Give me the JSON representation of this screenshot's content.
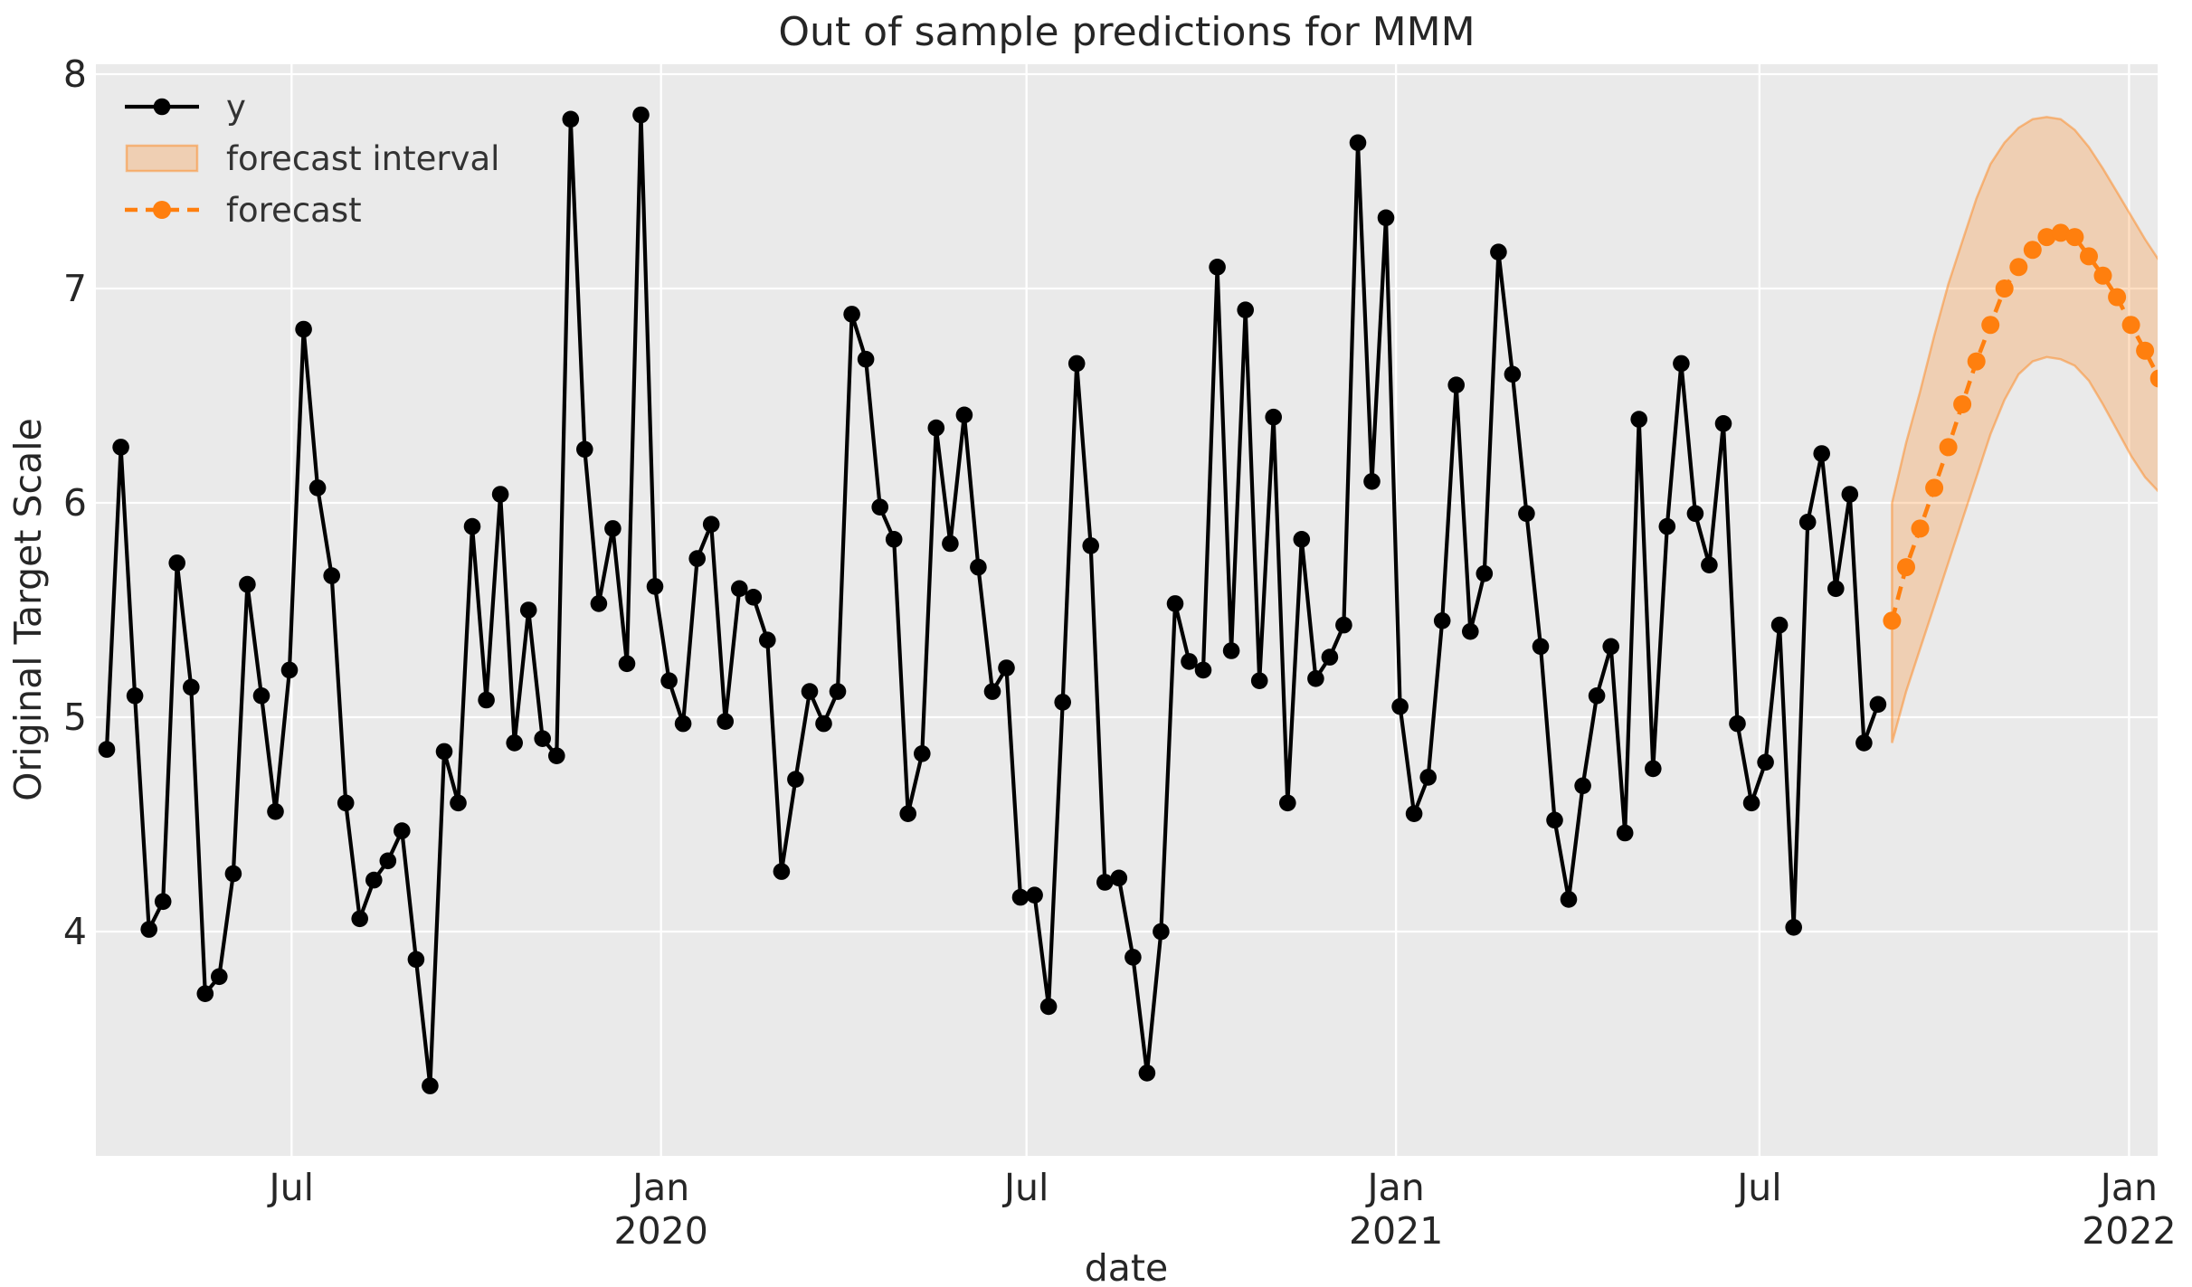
{
  "title": "Out of sample predictions for MMM",
  "x_axis": {
    "label": "date",
    "ticks": [
      {
        "month": "Jul",
        "year": "",
        "date": "2019-07-01"
      },
      {
        "month": "Jan",
        "year": "2020",
        "date": "2020-01-01"
      },
      {
        "month": "Jul",
        "year": "",
        "date": "2020-07-01"
      },
      {
        "month": "Jan",
        "year": "2021",
        "date": "2021-01-01"
      },
      {
        "month": "Jul",
        "year": "",
        "date": "2021-07-01"
      },
      {
        "month": "Jan",
        "year": "2022",
        "date": "2022-01-01"
      }
    ]
  },
  "y_axis": {
    "label": "Original Target Scale",
    "ticks": [
      8,
      7,
      6,
      5,
      4
    ]
  },
  "legend": {
    "items": [
      {
        "label": "y"
      },
      {
        "label": "forecast interval"
      },
      {
        "label": "forecast"
      }
    ]
  },
  "colors": {
    "series": "#000000",
    "forecast": "#ff7f0e",
    "band_fill": "rgba(255,127,14,0.25)",
    "band_edge": "rgba(255,127,14,0.45)",
    "plot_bg": "#eaeaea",
    "grid": "#ffffff",
    "text": "#262626"
  },
  "chart_data": {
    "type": "line",
    "title": "Out of sample predictions for MMM",
    "xlabel": "date",
    "ylabel": "Original Target Scale",
    "ylim": [
      2.95,
      8.05
    ],
    "xlim": [
      "2019-03-26",
      "2022-01-15"
    ],
    "grid": true,
    "legend_position": "upper left",
    "series": [
      {
        "name": "y",
        "style": "solid-marker",
        "color": "#000000",
        "start_date": "2019-03-31",
        "freq_days": 7,
        "values": [
          4.85,
          6.26,
          5.1,
          4.01,
          4.14,
          5.72,
          5.14,
          3.71,
          3.79,
          4.27,
          5.62,
          5.1,
          4.56,
          5.22,
          6.81,
          6.07,
          5.66,
          4.6,
          4.06,
          4.24,
          4.33,
          4.47,
          3.87,
          3.28,
          4.84,
          4.6,
          5.89,
          5.08,
          6.04,
          4.88,
          5.5,
          4.9,
          4.82,
          7.79,
          6.25,
          5.53,
          5.88,
          5.25,
          7.81,
          5.61,
          5.17,
          4.97,
          5.74,
          5.9,
          4.98,
          5.6,
          5.56,
          5.36,
          4.28,
          4.71,
          5.12,
          4.97,
          5.12,
          6.88,
          6.67,
          5.98,
          5.83,
          4.55,
          4.83,
          6.35,
          5.81,
          6.41,
          5.7,
          5.12,
          5.23,
          4.16,
          4.17,
          3.65,
          5.07,
          6.65,
          5.8,
          4.23,
          4.25,
          3.88,
          3.34,
          4.0,
          5.53,
          5.26,
          5.22,
          7.1,
          5.31,
          6.9,
          5.17,
          6.4,
          4.6,
          5.83,
          5.18,
          5.28,
          5.43,
          7.68,
          6.1,
          7.33,
          5.05,
          4.55,
          4.72,
          5.45,
          6.55,
          5.4,
          5.67,
          7.17,
          6.6,
          5.95,
          5.33,
          4.52,
          4.15,
          4.68,
          5.1,
          5.33,
          4.46,
          6.39,
          4.76,
          5.89,
          6.65,
          5.95,
          5.71,
          6.37,
          4.97,
          4.6,
          4.79,
          5.43,
          4.02,
          5.91,
          6.23,
          5.6,
          6.04,
          4.88,
          5.06
        ]
      },
      {
        "name": "forecast",
        "style": "dashed-marker",
        "color": "#ff7f0e",
        "start_date": "2021-09-05",
        "freq_days": 7,
        "values": [
          5.45,
          5.7,
          5.88,
          6.07,
          6.26,
          6.46,
          6.66,
          6.83,
          7.0,
          7.1,
          7.18,
          7.24,
          7.26,
          7.24,
          7.15,
          7.06,
          6.96,
          6.83,
          6.71,
          6.58
        ]
      }
    ],
    "interval": {
      "name": "forecast interval",
      "start_date": "2021-09-05",
      "freq_days": 7,
      "upper": [
        6.0,
        6.28,
        6.52,
        6.78,
        7.02,
        7.22,
        7.42,
        7.58,
        7.68,
        7.75,
        7.79,
        7.8,
        7.79,
        7.74,
        7.66,
        7.56,
        7.45,
        7.34,
        7.23,
        7.13
      ],
      "lower": [
        4.88,
        5.12,
        5.32,
        5.52,
        5.72,
        5.92,
        6.12,
        6.32,
        6.48,
        6.6,
        6.66,
        6.68,
        6.67,
        6.64,
        6.57,
        6.46,
        6.34,
        6.22,
        6.12,
        6.05
      ]
    }
  }
}
